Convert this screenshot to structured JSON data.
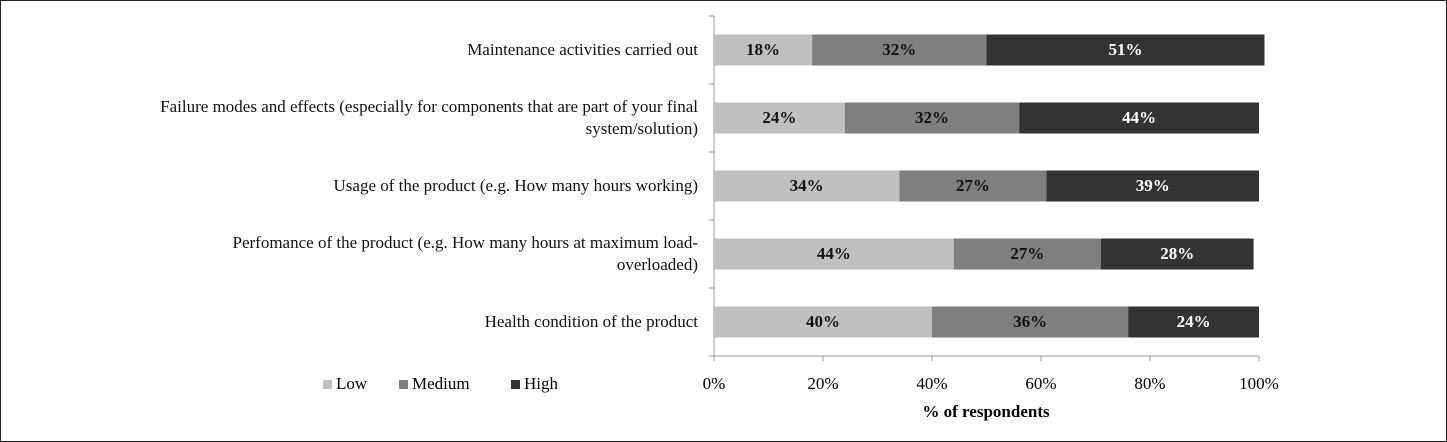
{
  "chart_data": {
    "type": "stacked-bar-horizontal",
    "categories": [
      "Maintenance activities carried out",
      "Failure modes and effects (especially for components that are part of your final system/solution)",
      "Usage of the product (e.g. How many hours working)",
      "Perfomance of the product (e.g. How many hours at maximum load-overloaded)",
      "Health condition of the product"
    ],
    "series": [
      {
        "name": "Low",
        "color": "#c0c0c0",
        "values": [
          18,
          24,
          34,
          44,
          40
        ],
        "value_labels": [
          "18%",
          "24%",
          "34%",
          "44%",
          "40%"
        ]
      },
      {
        "name": "Medium",
        "color": "#7f7f7f",
        "values": [
          32,
          32,
          27,
          27,
          36
        ],
        "value_labels": [
          "32%",
          "32%",
          "27%",
          "27%",
          "36%"
        ]
      },
      {
        "name": "High",
        "color": "#333333",
        "values": [
          51,
          44,
          39,
          28,
          24
        ],
        "value_labels": [
          "51%",
          "44%",
          "39%",
          "28%",
          "24%"
        ]
      }
    ],
    "xlabel": "% of respondents",
    "xlim": [
      0,
      100
    ],
    "xticks": [
      {
        "value": 0,
        "label": "0%"
      },
      {
        "value": 20,
        "label": "20%"
      },
      {
        "value": 40,
        "label": "40%"
      },
      {
        "value": 60,
        "label": "60%"
      },
      {
        "value": 80,
        "label": "80%"
      },
      {
        "value": 100,
        "label": "100%"
      }
    ],
    "legend": "bottom-left"
  }
}
